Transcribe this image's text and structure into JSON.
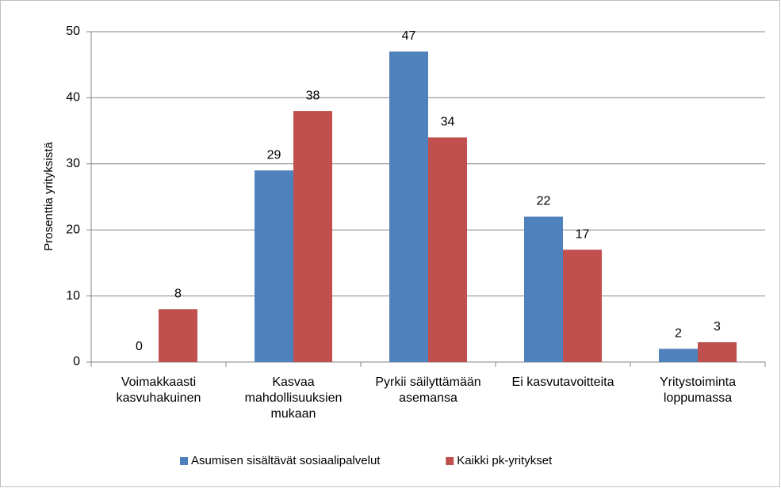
{
  "chart_data": {
    "type": "bar",
    "y_axis_label": "Prosenttia yrityksistä",
    "categories": [
      "Voimakkaasti kasvuhakuinen",
      "Kasvaa mahdollisuuksien mukaan",
      "Pyrkii säilyttämään asemansa",
      "Ei kasvutavoitteita",
      "Yritystoiminta loppumassa"
    ],
    "series": [
      {
        "name": "Asumisen sisältävät sosiaalipalvelut",
        "color": "#4f81bd",
        "values": [
          0,
          29,
          47,
          22,
          2
        ]
      },
      {
        "name": "Kaikki pk-yritykset",
        "color": "#c0504d",
        "values": [
          8,
          38,
          34,
          17,
          3
        ]
      }
    ],
    "ylim": [
      0,
      50
    ],
    "yticks": [
      0,
      10,
      20,
      30,
      40,
      50
    ],
    "grid": true,
    "legend": "bottom"
  }
}
